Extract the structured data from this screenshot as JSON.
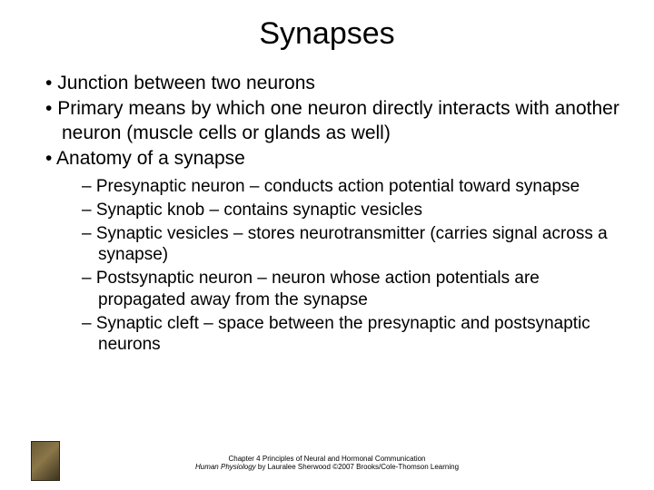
{
  "title": "Synapses",
  "bullets": {
    "b1": "Junction between two neurons",
    "b2": "Primary means by which one neuron directly interacts with another neuron (muscle cells or glands as well)",
    "b3": "Anatomy of a synapse",
    "s1": "Presynaptic neuron – conducts action potential toward synapse",
    "s2": "Synaptic knob – contains synaptic vesicles",
    "s3": "Synaptic vesicles – stores neurotransmitter (carries signal across a synapse)",
    "s4": "Postsynaptic neuron – neuron whose action potentials are propagated away from the synapse",
    "s5": "Synaptic cleft – space between the presynaptic and postsynaptic neurons"
  },
  "footer": {
    "line1": "Chapter 4 Principles of Neural and Hormonal Communication",
    "line2_italic": "Human Physiology",
    "line2_rest": " by Lauralee Sherwood ©2007 Brooks/Cole-Thomson Learning"
  },
  "colors": {
    "background": "#ffffff",
    "text": "#000000"
  },
  "typography": {
    "title_fontsize": 34,
    "l1_fontsize": 21,
    "l2_fontsize": 19,
    "footer_fontsize": 8,
    "font_family": "Arial"
  }
}
